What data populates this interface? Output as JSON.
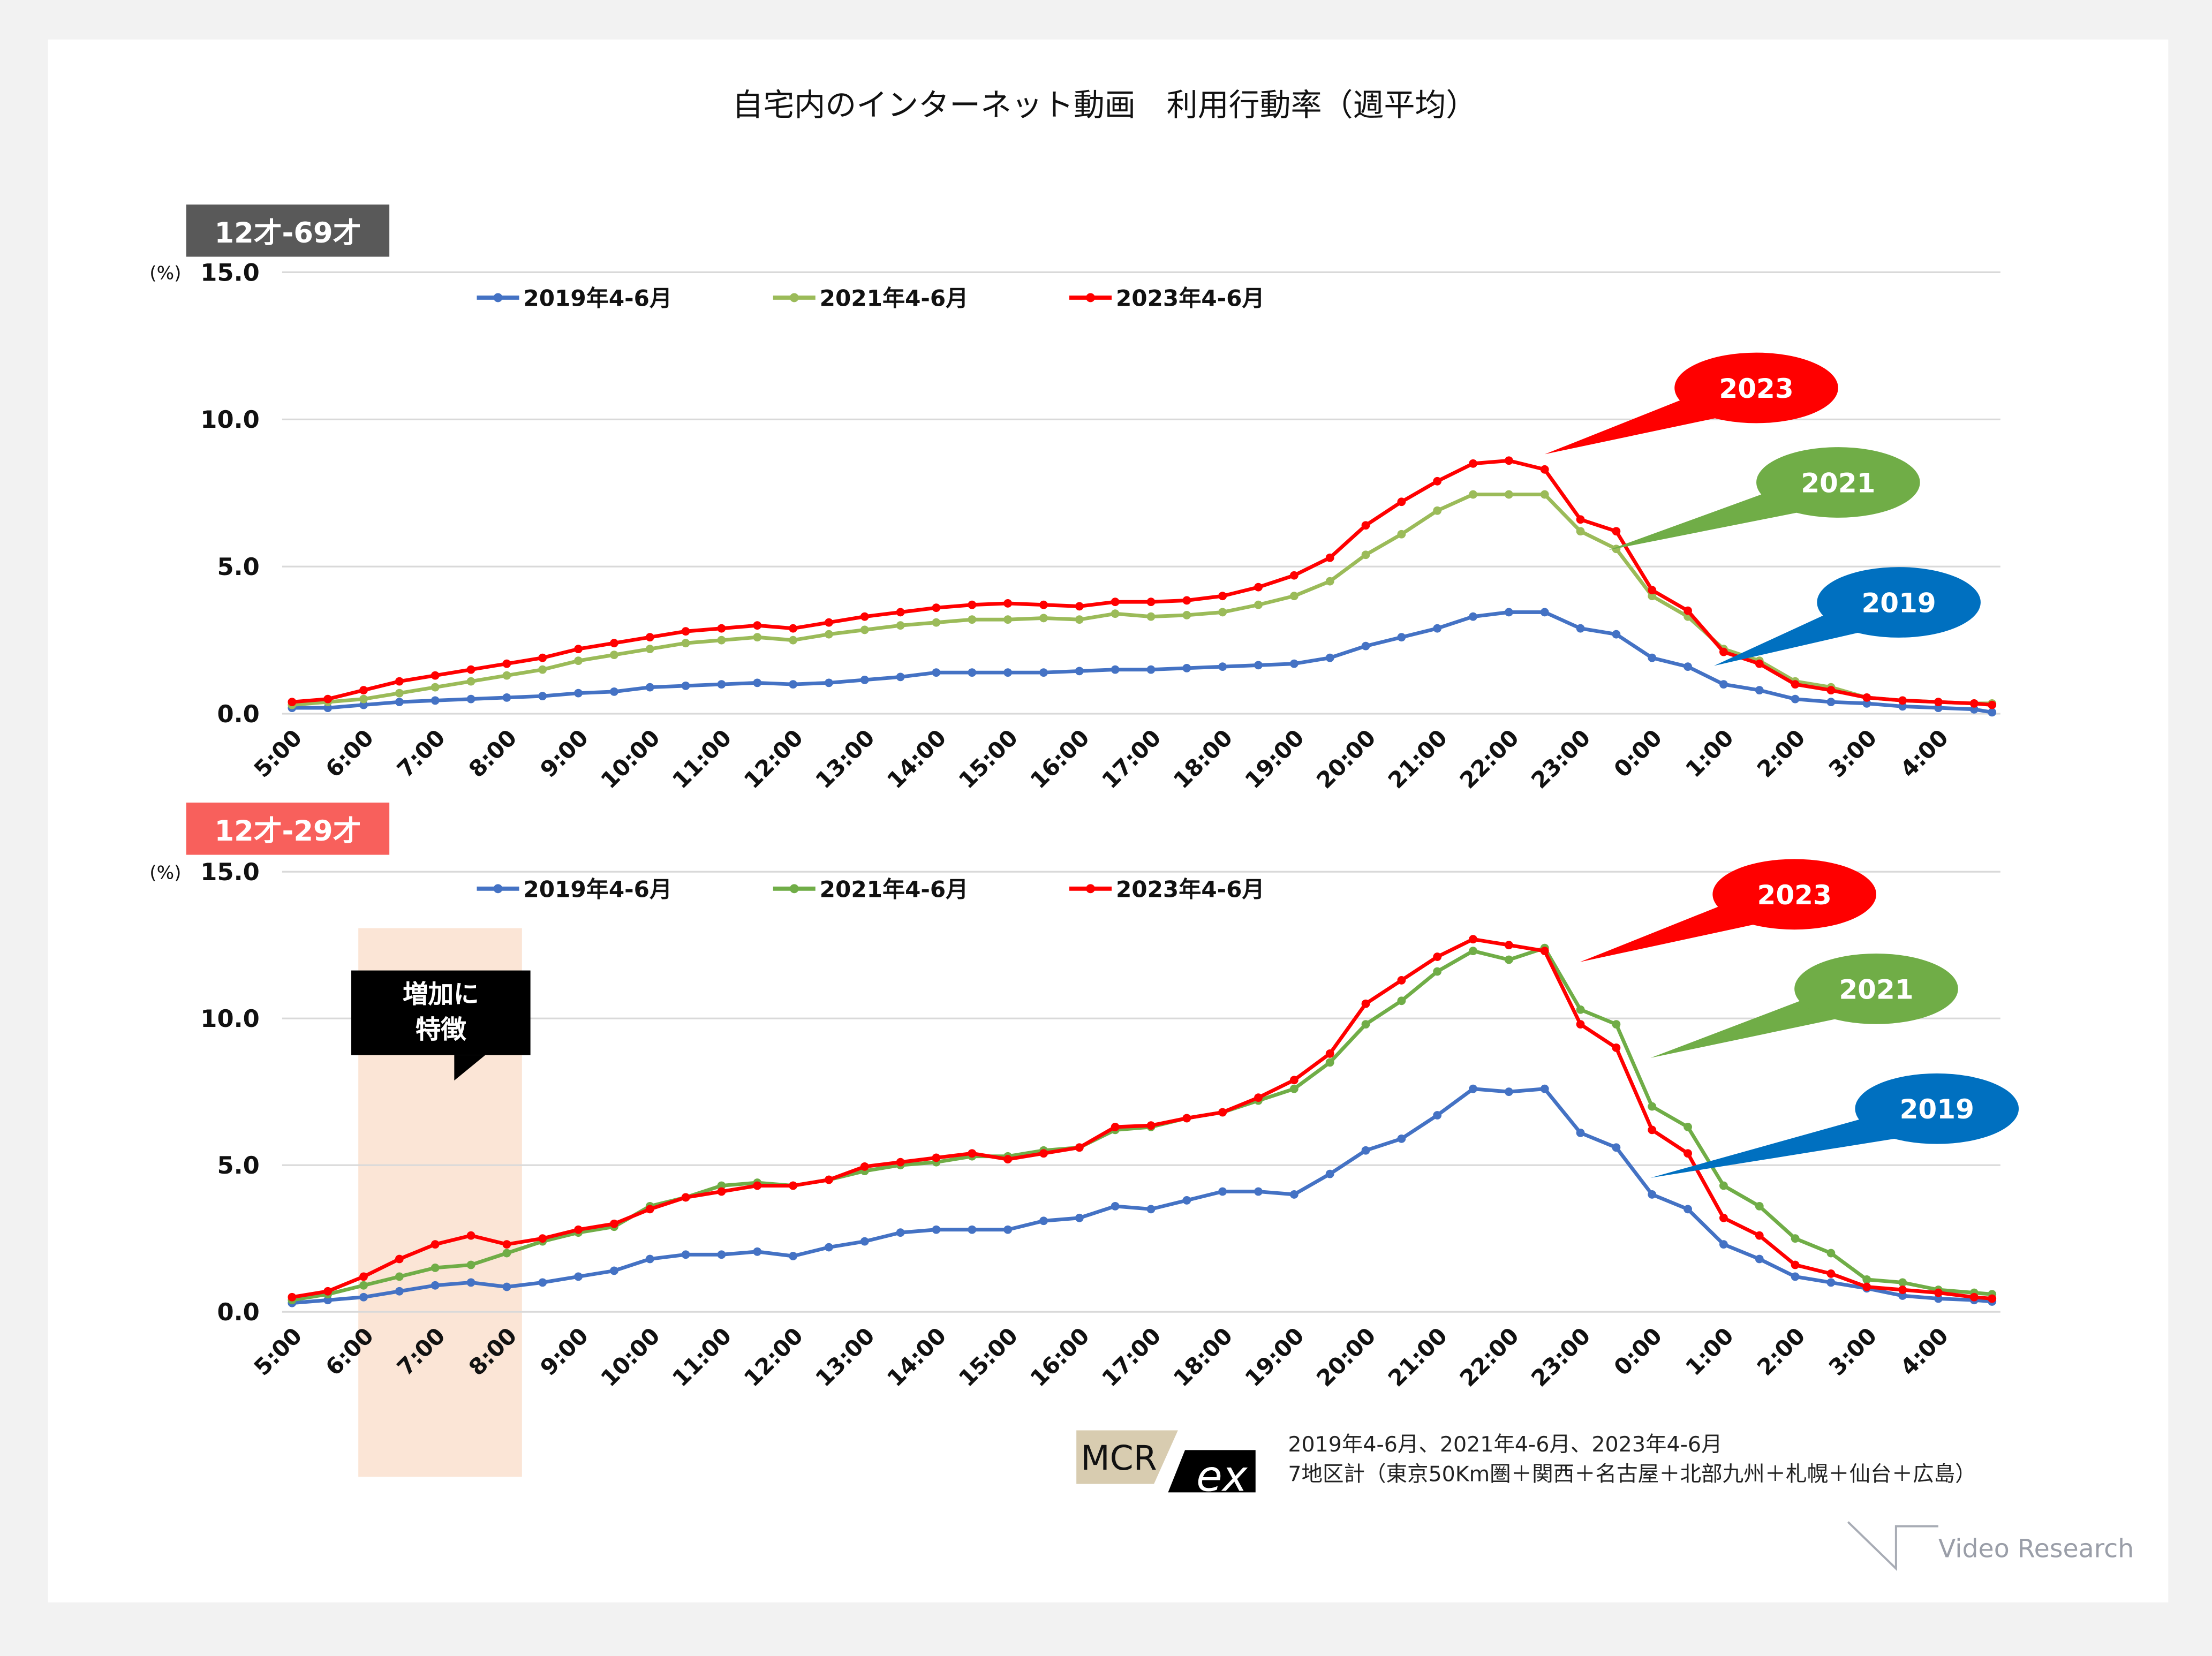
{
  "title": "自宅内のインターネット動画　利用行動率（週平均）",
  "colors": {
    "2019": "#4472c4",
    "2021_top": "#9bbb59",
    "2021_bottom": "#70ad47",
    "2023": "#ff0000",
    "bubble_2019": "#0070c0",
    "bubble_2021": "#70ad47",
    "bubble_2023": "#ff0000",
    "tag_top": "#595959",
    "tag_bottom": "#f8605c",
    "highlight": "#fbe5d6"
  },
  "footer": {
    "logo": "MCR ex",
    "period": "2019年4-6月、2021年4-6月、2023年4-6月",
    "area": "7地区計（東京50Km圏＋関西＋名古屋＋北部九州＋札幌＋仙台＋広島）",
    "brand": "Video Research"
  },
  "chart_data": [
    {
      "type": "line",
      "panel_label": "12才-69才",
      "ylabel": "(%)",
      "ylim": [
        0,
        15
      ],
      "yticks": [
        "15.0",
        "10.0",
        "5.0",
        "0.0"
      ],
      "xticks": [
        "5:00",
        "6:00",
        "7:00",
        "8:00",
        "9:00",
        "10:00",
        "11:00",
        "12:00",
        "13:00",
        "14:00",
        "15:00",
        "16:00",
        "17:00",
        "18:00",
        "19:00",
        "20:00",
        "21:00",
        "22:00",
        "23:00",
        "0:00",
        "1:00",
        "2:00",
        "3:00",
        "4:00"
      ],
      "x_note": "values every 30 min from 5:00 to 4:30, last point 4:45",
      "legend": [
        "2019年4-6月",
        "2021年4-6月",
        "2023年4-6月"
      ],
      "legend_position": "top",
      "grid": true,
      "callouts": [
        "2023",
        "2021",
        "2019"
      ],
      "series": [
        {
          "name": "2019年4-6月",
          "values": [
            0.2,
            0.2,
            0.3,
            0.4,
            0.45,
            0.5,
            0.55,
            0.6,
            0.7,
            0.75,
            0.9,
            0.95,
            1.0,
            1.05,
            1.0,
            1.05,
            1.15,
            1.25,
            1.4,
            1.4,
            1.4,
            1.4,
            1.45,
            1.5,
            1.5,
            1.55,
            1.6,
            1.65,
            1.7,
            1.9,
            2.3,
            2.6,
            2.9,
            3.3,
            3.45,
            3.45,
            2.9,
            2.7,
            1.9,
            1.6,
            1.0,
            0.8,
            0.5,
            0.4,
            0.35,
            0.25,
            0.2,
            0.15,
            0.05
          ]
        },
        {
          "name": "2021年4-6月",
          "values": [
            0.3,
            0.4,
            0.5,
            0.7,
            0.9,
            1.1,
            1.3,
            1.5,
            1.8,
            2.0,
            2.2,
            2.4,
            2.5,
            2.6,
            2.5,
            2.7,
            2.85,
            3.0,
            3.1,
            3.2,
            3.2,
            3.25,
            3.2,
            3.4,
            3.3,
            3.35,
            3.45,
            3.7,
            4.0,
            4.5,
            5.4,
            6.1,
            6.9,
            7.45,
            7.45,
            7.45,
            6.2,
            5.6,
            4.0,
            3.3,
            2.2,
            1.8,
            1.1,
            0.9,
            0.55,
            0.45,
            0.4,
            0.35,
            0.35
          ]
        },
        {
          "name": "2023年4-6月",
          "values": [
            0.4,
            0.5,
            0.8,
            1.1,
            1.3,
            1.5,
            1.7,
            1.9,
            2.2,
            2.4,
            2.6,
            2.8,
            2.9,
            3.0,
            2.9,
            3.1,
            3.3,
            3.45,
            3.6,
            3.7,
            3.75,
            3.7,
            3.65,
            3.8,
            3.8,
            3.85,
            4.0,
            4.3,
            4.7,
            5.3,
            6.4,
            7.2,
            7.9,
            8.5,
            8.6,
            8.3,
            6.6,
            6.2,
            4.2,
            3.5,
            2.1,
            1.7,
            1.0,
            0.8,
            0.55,
            0.45,
            0.4,
            0.35,
            0.3
          ]
        }
      ]
    },
    {
      "type": "line",
      "panel_label": "12才-29才",
      "ylabel": "(%)",
      "ylim": [
        0,
        15
      ],
      "yticks": [
        "15.0",
        "10.0",
        "5.0",
        "0.0"
      ],
      "xticks": [
        "5:00",
        "6:00",
        "7:00",
        "8:00",
        "9:00",
        "10:00",
        "11:00",
        "12:00",
        "13:00",
        "14:00",
        "15:00",
        "16:00",
        "17:00",
        "18:00",
        "19:00",
        "20:00",
        "21:00",
        "22:00",
        "23:00",
        "0:00",
        "1:00",
        "2:00",
        "3:00",
        "4:00"
      ],
      "legend": [
        "2019年4-6月",
        "2021年4-6月",
        "2023年4-6月"
      ],
      "legend_position": "top",
      "grid": true,
      "annotation": "増加に特徴",
      "annotation_line1": "増加に",
      "annotation_line2": "特徴",
      "highlight_range": [
        "6:00",
        "8:15"
      ],
      "callouts": [
        "2023",
        "2021",
        "2019"
      ],
      "series": [
        {
          "name": "2019年4-6月",
          "values": [
            0.3,
            0.4,
            0.5,
            0.7,
            0.9,
            1.0,
            0.85,
            1.0,
            1.2,
            1.4,
            1.8,
            1.95,
            1.95,
            2.05,
            1.9,
            2.2,
            2.4,
            2.7,
            2.8,
            2.8,
            2.8,
            3.1,
            3.2,
            3.6,
            3.5,
            3.8,
            4.1,
            4.1,
            4.0,
            4.7,
            5.5,
            5.9,
            6.7,
            7.6,
            7.5,
            7.6,
            6.1,
            5.6,
            4.0,
            3.5,
            2.3,
            1.8,
            1.2,
            1.0,
            0.8,
            0.55,
            0.45,
            0.4,
            0.35
          ]
        },
        {
          "name": "2021年4-6月",
          "values": [
            0.4,
            0.6,
            0.9,
            1.2,
            1.5,
            1.6,
            2.0,
            2.4,
            2.7,
            2.9,
            3.6,
            3.9,
            4.3,
            4.4,
            4.3,
            4.5,
            4.8,
            5.0,
            5.1,
            5.3,
            5.3,
            5.5,
            5.6,
            6.2,
            6.3,
            6.6,
            6.8,
            7.2,
            7.6,
            8.5,
            9.8,
            10.6,
            11.6,
            12.3,
            12.0,
            12.4,
            10.3,
            9.8,
            7.0,
            6.3,
            4.3,
            3.6,
            2.5,
            2.0,
            1.1,
            1.0,
            0.75,
            0.65,
            0.6
          ]
        },
        {
          "name": "2023年4-6月",
          "values": [
            0.5,
            0.7,
            1.2,
            1.8,
            2.3,
            2.6,
            2.3,
            2.5,
            2.8,
            3.0,
            3.5,
            3.9,
            4.1,
            4.3,
            4.3,
            4.5,
            4.95,
            5.1,
            5.25,
            5.4,
            5.2,
            5.4,
            5.6,
            6.3,
            6.35,
            6.6,
            6.8,
            7.3,
            7.9,
            8.8,
            10.5,
            11.3,
            12.1,
            12.7,
            12.5,
            12.3,
            9.8,
            9.0,
            6.2,
            5.4,
            3.2,
            2.6,
            1.6,
            1.3,
            0.85,
            0.75,
            0.65,
            0.5,
            0.45
          ]
        }
      ]
    }
  ]
}
